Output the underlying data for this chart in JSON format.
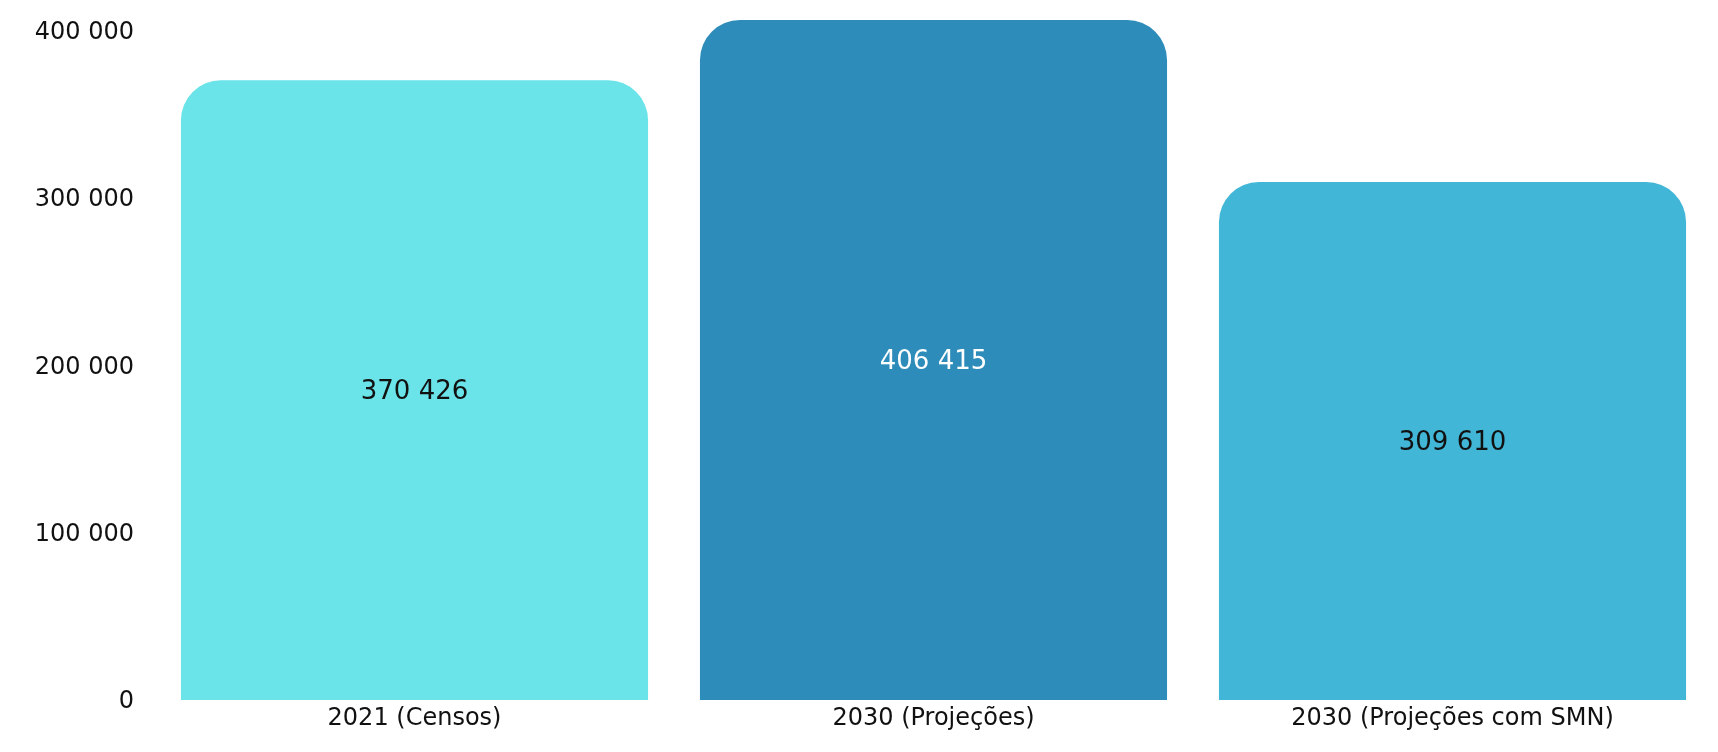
{
  "chart_data": {
    "type": "bar",
    "categories": [
      "2021 (Censos)",
      "2030 (Projeções)",
      "2030 (Projeções com SMN)"
    ],
    "values": [
      370426,
      406415,
      309610
    ],
    "colors": [
      "#6ae4e9",
      "#2e8cba",
      "#42b6d6"
    ],
    "value_labels": [
      "370 426",
      "406 415",
      "309 610"
    ],
    "ylim": [
      0,
      406415
    ],
    "yticks": [
      0,
      {
        "value": 100000,
        "label": "100 000"
      },
      {
        "value": 200000,
        "label": "200 000"
      },
      {
        "value": 300000,
        "label": "300 000"
      },
      {
        "value": 400000,
        "label": "400 000"
      }
    ],
    "grid": false
  }
}
